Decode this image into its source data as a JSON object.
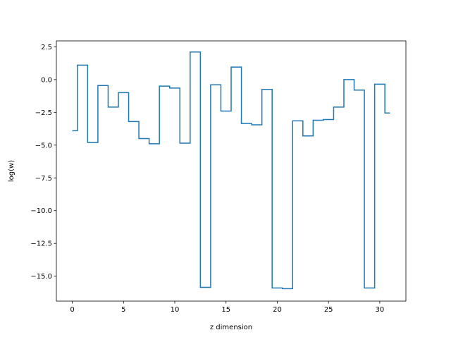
{
  "chart_data": {
    "type": "line",
    "drawstyle": "steps-mid",
    "title": "",
    "xlabel": "z dimension",
    "ylabel": "log(w)",
    "xlim": [
      -1.55,
      32.55
    ],
    "ylim": [
      -16.9,
      2.95
    ],
    "xticks": [
      0,
      5,
      10,
      15,
      20,
      25,
      30
    ],
    "xtick_labels": [
      "0",
      "5",
      "10",
      "15",
      "20",
      "25",
      "30"
    ],
    "yticks": [
      2.5,
      0.0,
      -2.5,
      -5.0,
      -7.5,
      -10.0,
      -12.5,
      -15.0
    ],
    "ytick_labels": [
      "2.5",
      "0.0",
      "−2.5",
      "−5.0",
      "−7.5",
      "−10.0",
      "−12.5",
      "−15.0"
    ],
    "grid": false,
    "legend": "none",
    "color": "#1f77b4",
    "series": [
      {
        "x": [
          0,
          1,
          2,
          3,
          4,
          5,
          6,
          7,
          8,
          9,
          10,
          11,
          12,
          13,
          14,
          15,
          16,
          17,
          18,
          19,
          20,
          21,
          22,
          23,
          24,
          25,
          26,
          27,
          28,
          29,
          30,
          31
        ],
        "values": [
          -3.9,
          1.1,
          -4.8,
          -0.45,
          -2.1,
          -1.0,
          -3.2,
          -4.5,
          -4.9,
          -0.5,
          -0.65,
          -4.85,
          2.1,
          -15.85,
          -0.4,
          -2.4,
          0.95,
          -3.35,
          -3.45,
          -0.75,
          -15.9,
          -15.95,
          -3.15,
          -4.3,
          -3.1,
          -3.05,
          -2.1,
          0.0,
          -0.8,
          -15.9,
          -0.35,
          -2.55
        ]
      }
    ]
  }
}
